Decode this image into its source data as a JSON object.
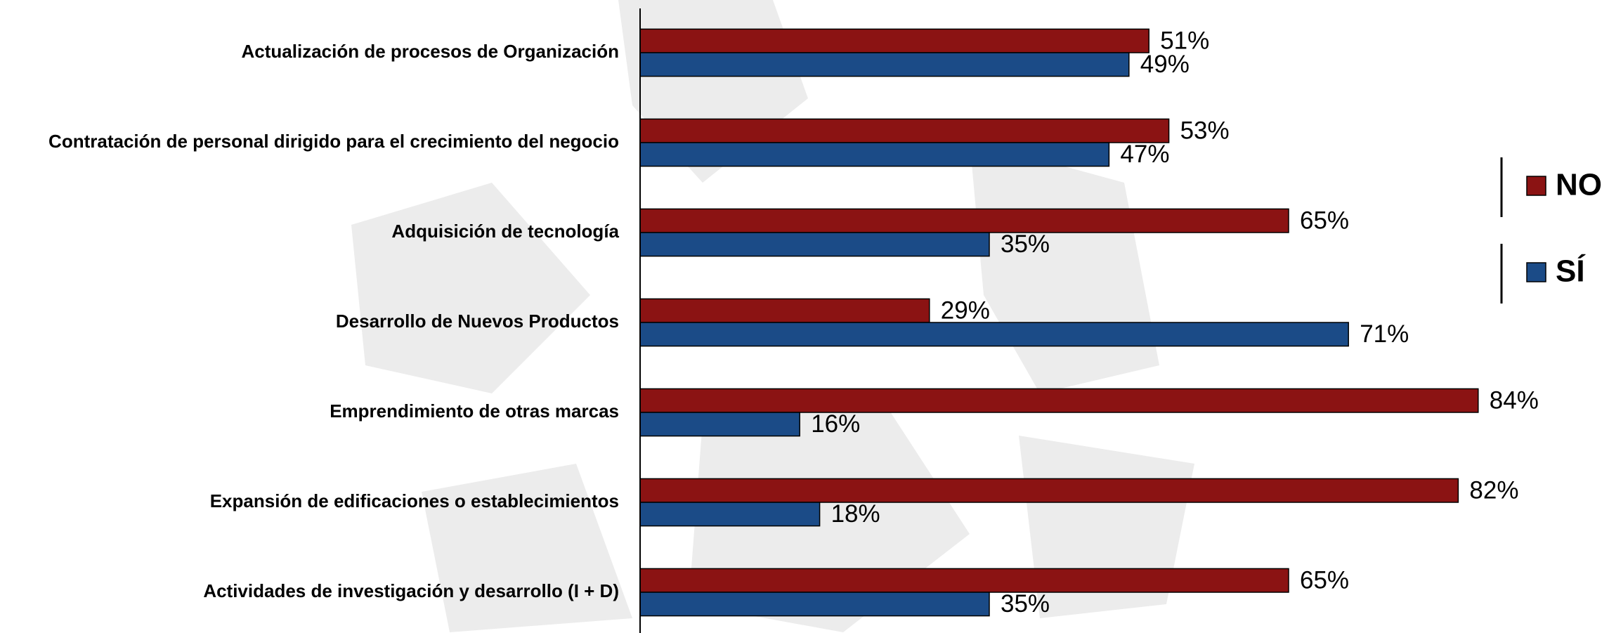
{
  "chart_data": {
    "type": "hbar",
    "categories": [
      "Actualización de procesos de Organización",
      "Contratación de personal dirigido para el crecimiento del negocio",
      "Adquisición de tecnología",
      "Desarrollo de Nuevos Productos",
      "Emprendimiento de otras marcas",
      "Expansión de edificaciones o establecimientos",
      "Actividades de investigación y desarrollo (I + D)"
    ],
    "series": [
      {
        "name": "NO",
        "color": "#8b1313",
        "values": [
          51,
          53,
          65,
          29,
          84,
          82,
          65
        ],
        "value_labels": [
          "51%",
          "53%",
          "65%",
          "29%",
          "84%",
          "82%",
          "65%"
        ]
      },
      {
        "name": "SÍ",
        "color": "#1b4b87",
        "values": [
          49,
          47,
          35,
          71,
          16,
          18,
          35
        ],
        "value_labels": [
          "49%",
          "47%",
          "35%",
          "71%",
          "16%",
          "18%",
          "35%"
        ]
      }
    ],
    "legend": "right"
  }
}
